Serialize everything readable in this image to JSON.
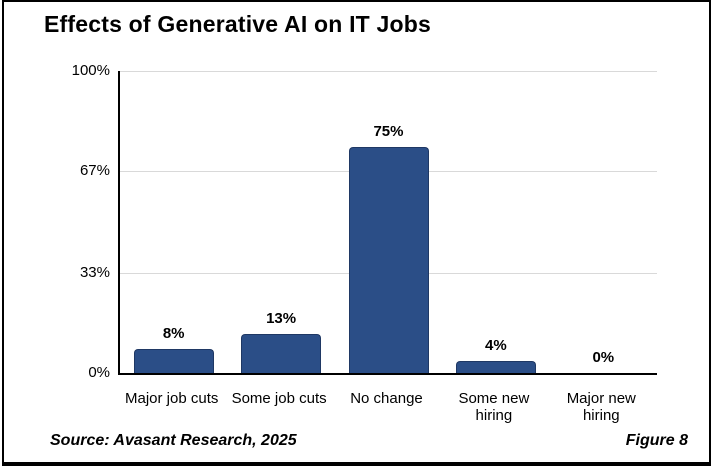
{
  "frame": {
    "title": "Effects of Generative AI on IT Jobs",
    "source": "Source: Avasant Research, 2025",
    "figure_label": "Figure 8"
  },
  "chart_data": {
    "type": "bar",
    "title": "Effects of Generative AI on IT Jobs",
    "categories": [
      "Major job cuts",
      "Some job cuts",
      "No change",
      "Some new hiring",
      "Major new hiring"
    ],
    "category_label_lines": [
      [
        "Major job cuts"
      ],
      [
        "Some job cuts"
      ],
      [
        "No change"
      ],
      [
        "Some new",
        "hiring"
      ],
      [
        "Major new",
        "hiring"
      ]
    ],
    "values": [
      8,
      13,
      75,
      4,
      0
    ],
    "value_labels": [
      "8%",
      "13%",
      "75%",
      "4%",
      "0%"
    ],
    "xlabel": "",
    "ylabel": "",
    "ylim": [
      0,
      100
    ],
    "yticks": [
      0,
      33,
      67,
      100
    ],
    "ytick_labels": [
      "0%",
      "33%",
      "67%",
      "100%"
    ],
    "grid": "horizontal",
    "legend": "none",
    "bar_color": "#2B4E87",
    "bar_border_color": "#1F3864",
    "gridline_color": "#D9D9D9",
    "axis_color": "#000000"
  }
}
